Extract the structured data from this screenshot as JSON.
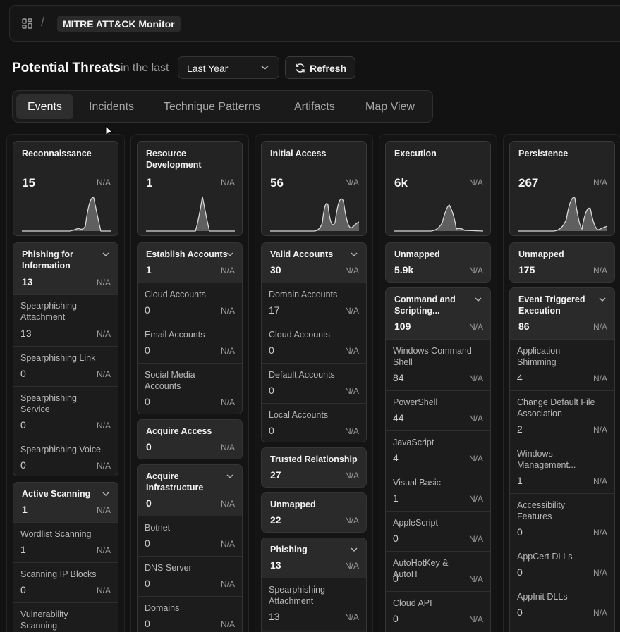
{
  "breadcrumb": {
    "title": "MITRE ATT&CK Monitor"
  },
  "header": {
    "title": "Potential Threats",
    "subtitle": "in the last",
    "range": "Last Year",
    "refresh": "Refresh"
  },
  "tabs": [
    {
      "label": "Events"
    },
    {
      "label": "Incidents"
    },
    {
      "label": "Technique Patterns"
    },
    {
      "label": "Artifacts"
    },
    {
      "label": "Map View"
    }
  ],
  "na": "N/A",
  "columns": [
    {
      "title": "Reconnaissance",
      "count": "15",
      "groups": [
        {
          "name": "Phishing for Information",
          "count": "13",
          "subs": [
            {
              "name": "Spearphishing Attachment",
              "count": "13"
            },
            {
              "name": "Spearphishing Link",
              "count": "0"
            },
            {
              "name": "Spearphishing Service",
              "count": "0"
            },
            {
              "name": "Spearphishing Voice",
              "count": "0"
            }
          ]
        },
        {
          "name": "Active Scanning",
          "count": "1",
          "subs": [
            {
              "name": "Wordlist Scanning",
              "count": "1"
            },
            {
              "name": "Scanning IP Blocks",
              "count": "0"
            },
            {
              "name": "Vulnerability Scanning",
              "count": ""
            }
          ]
        }
      ]
    },
    {
      "title": "Resource Development",
      "count": "1",
      "groups": [
        {
          "name": "Establish Accounts",
          "count": "1",
          "subs": [
            {
              "name": "Cloud Accounts",
              "count": "0"
            },
            {
              "name": "Email Accounts",
              "count": "0"
            },
            {
              "name": "Social Media Accounts",
              "count": "0"
            }
          ]
        },
        {
          "name": "Acquire Access",
          "count": "0",
          "subs": []
        },
        {
          "name": "Acquire Infrastructure",
          "count": "0",
          "subs": [
            {
              "name": "Botnet",
              "count": "0"
            },
            {
              "name": "DNS Server",
              "count": "0"
            },
            {
              "name": "Domains",
              "count": "0"
            }
          ]
        }
      ]
    },
    {
      "title": "Initial Access",
      "count": "56",
      "groups": [
        {
          "name": "Valid Accounts",
          "count": "30",
          "subs": [
            {
              "name": "Domain Accounts",
              "count": "17"
            },
            {
              "name": "Cloud Accounts",
              "count": "0"
            },
            {
              "name": "Default Accounts",
              "count": "0"
            },
            {
              "name": "Local Accounts",
              "count": "0"
            }
          ]
        },
        {
          "name": "Trusted Relationship",
          "count": "27",
          "subs": []
        },
        {
          "name": "Unmapped",
          "count": "22",
          "subs": []
        },
        {
          "name": "Phishing",
          "count": "13",
          "subs": [
            {
              "name": "Spearphishing Attachment",
              "count": "13"
            }
          ]
        }
      ]
    },
    {
      "title": "Execution",
      "count": "6k",
      "groups": [
        {
          "name": "Unmapped",
          "count": "5.9k",
          "subs": []
        },
        {
          "name": "Command and Scripting...",
          "count": "109",
          "subs": [
            {
              "name": "Windows Command Shell",
              "count": "84"
            },
            {
              "name": "PowerShell",
              "count": "44"
            },
            {
              "name": "JavaScript",
              "count": "4"
            },
            {
              "name": "Visual Basic",
              "count": "1"
            },
            {
              "name": "AppleScript",
              "count": "0"
            },
            {
              "name": "AutoHotKey & AutoIT",
              "count": "0"
            },
            {
              "name": "Cloud API",
              "count": "0"
            }
          ]
        }
      ]
    },
    {
      "title": "Persistence",
      "count": "267",
      "groups": [
        {
          "name": "Unmapped",
          "count": "175",
          "subs": []
        },
        {
          "name": "Event Triggered Execution",
          "count": "86",
          "subs": [
            {
              "name": "Application Shimming",
              "count": "4"
            },
            {
              "name": "Change Default File Association",
              "count": "2"
            },
            {
              "name": "Windows Management...",
              "count": "1"
            },
            {
              "name": "Accessibility Features",
              "count": "0"
            },
            {
              "name": "AppCert DLLs",
              "count": "0"
            },
            {
              "name": "AppInit DLLs",
              "count": "0"
            }
          ]
        }
      ]
    }
  ]
}
